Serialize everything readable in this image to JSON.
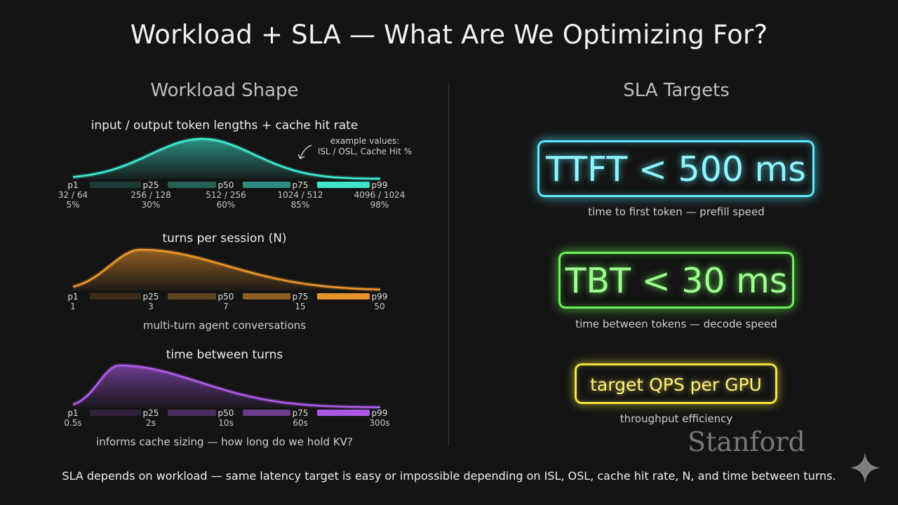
{
  "title": "Workload + SLA — What Are We Optimizing For?",
  "left": {
    "heading": "Workload Shape",
    "distributions": [
      {
        "title": "input / output token lengths + cache hit rate",
        "note": "example values:\nISL / OSL, Cache Hit %",
        "color": "#3ff0d8",
        "peak": 0.42,
        "ticks": [
          {
            "label": "p1",
            "v1": "32 / 64",
            "v2": "5%"
          },
          {
            "label": "p25",
            "v1": "256 / 128",
            "v2": "30%"
          },
          {
            "label": "p50",
            "v1": "512 / 256",
            "v2": "60%"
          },
          {
            "label": "p75",
            "v1": "1024 / 512",
            "v2": "85%"
          },
          {
            "label": "p99",
            "v1": "4096 / 1024",
            "v2": "98%"
          }
        ],
        "caption": ""
      },
      {
        "title": "turns per session (N)",
        "color": "#f29a2e",
        "peak": 0.22,
        "ticks": [
          {
            "label": "p1",
            "v1": "1"
          },
          {
            "label": "p25",
            "v1": "3"
          },
          {
            "label": "p50",
            "v1": "7"
          },
          {
            "label": "p75",
            "v1": "15"
          },
          {
            "label": "p99",
            "v1": "50"
          }
        ],
        "caption": "multi-turn agent conversations"
      },
      {
        "title": "time between turns",
        "color": "#b45cf0",
        "peak": 0.15,
        "ticks": [
          {
            "label": "p1",
            "v1": "0.5s"
          },
          {
            "label": "p25",
            "v1": "2s"
          },
          {
            "label": "p50",
            "v1": "10s"
          },
          {
            "label": "p75",
            "v1": "60s"
          },
          {
            "label": "p99",
            "v1": "300s"
          }
        ],
        "caption": "informs cache sizing — how long do we hold KV?"
      }
    ]
  },
  "right": {
    "heading": "SLA Targets",
    "targets": [
      {
        "label": "TTFT < 500 ms",
        "caption": "time to first token — prefill speed",
        "color": "#5ee9ff"
      },
      {
        "label": "TBT < 30 ms",
        "caption": "time between tokens — decode speed",
        "color": "#6cf05a"
      },
      {
        "label": "target QPS per GPU",
        "caption": "throughput efficiency",
        "color": "#f4e340"
      }
    ]
  },
  "footer": "SLA depends on workload — same latency target is easy or impossible depending on ISL, OSL, cache hit rate, N, and time between turns.",
  "logo": "Stanford"
}
